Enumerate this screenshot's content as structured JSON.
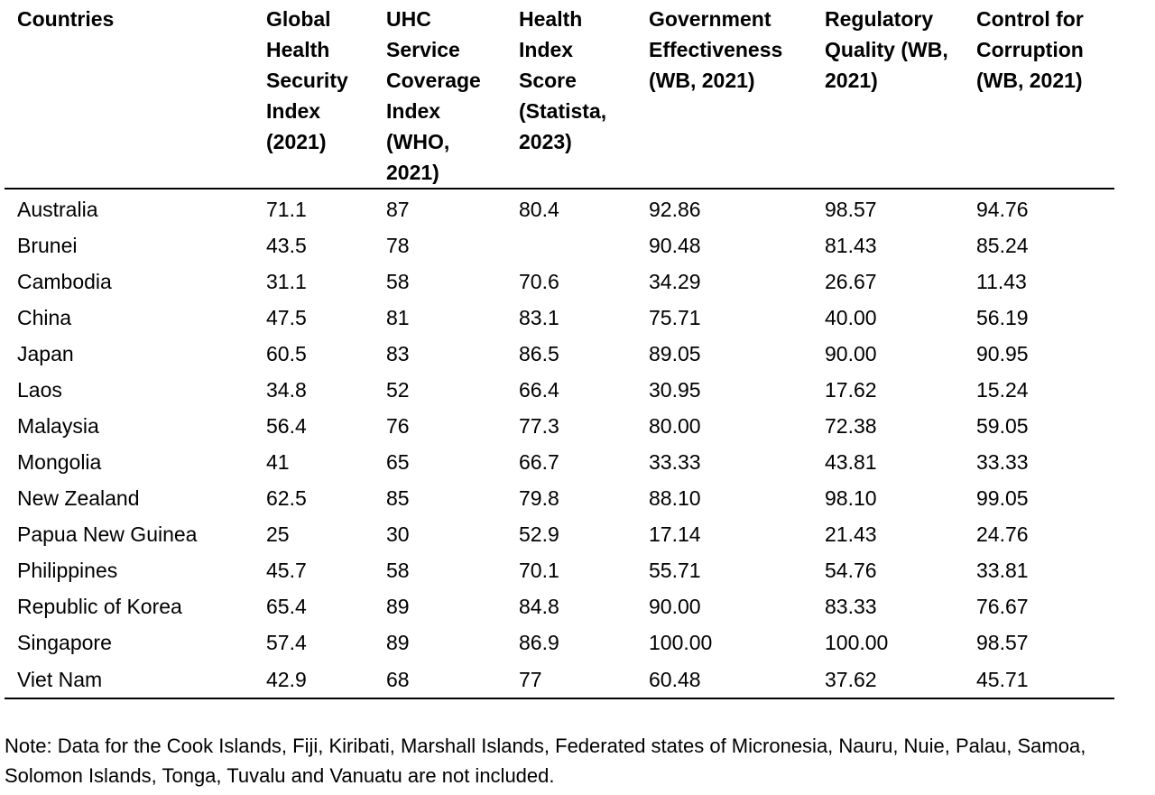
{
  "table": {
    "headers": [
      "Countries",
      "Global Health Security Index (2021)",
      "UHC Service Coverage Index (WHO, 2021)",
      "Health Index Score (Statista, 2023)",
      "Government Effectiveness (WB, 2021)",
      "Regulatory Quality (WB, 2021)",
      "Control for Corruption (WB, 2021)"
    ],
    "rows": [
      [
        "Australia",
        "71.1",
        "87",
        "80.4",
        "92.86",
        "98.57",
        "94.76"
      ],
      [
        "Brunei",
        "43.5",
        "78",
        "",
        "90.48",
        "81.43",
        "85.24"
      ],
      [
        "Cambodia",
        "31.1",
        "58",
        "70.6",
        "34.29",
        "26.67",
        "11.43"
      ],
      [
        "China",
        "47.5",
        "81",
        "83.1",
        "75.71",
        "40.00",
        "56.19"
      ],
      [
        "Japan",
        "60.5",
        "83",
        "86.5",
        "89.05",
        "90.00",
        "90.95"
      ],
      [
        "Laos",
        "34.8",
        "52",
        "66.4",
        "30.95",
        "17.62",
        "15.24"
      ],
      [
        "Malaysia",
        "56.4",
        "76",
        "77.3",
        "80.00",
        "72.38",
        "59.05"
      ],
      [
        "Mongolia",
        "41",
        "65",
        "66.7",
        "33.33",
        "43.81",
        "33.33"
      ],
      [
        "New Zealand",
        "62.5",
        "85",
        "79.8",
        "88.10",
        "98.10",
        "99.05"
      ],
      [
        "Papua New Guinea",
        "25",
        "30",
        "52.9",
        "17.14",
        "21.43",
        "24.76"
      ],
      [
        "Philippines",
        "45.7",
        "58",
        "70.1",
        "55.71",
        "54.76",
        "33.81"
      ],
      [
        "Republic of Korea",
        "65.4",
        "89",
        "84.8",
        "90.00",
        "83.33",
        "76.67"
      ],
      [
        "Singapore",
        "57.4",
        "89",
        "86.9",
        "100.00",
        "100.00",
        "98.57"
      ],
      [
        "Viet Nam",
        "42.9",
        "68",
        "77",
        "60.48",
        "37.62",
        "45.71"
      ]
    ]
  },
  "note": "Note: Data for the Cook Islands, Fiji, Kiribati, Marshall Islands, Federated states of Micronesia, Nauru, Nuie, Palau, Samoa, Solomon Islands, Tonga, Tuvalu and Vanuatu are not included."
}
